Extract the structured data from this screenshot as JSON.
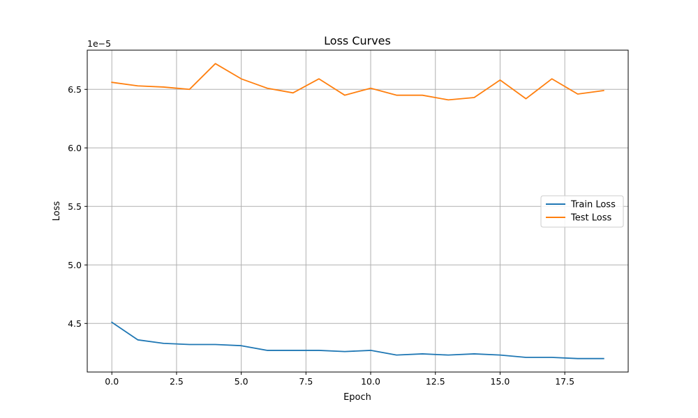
{
  "chart_data": {
    "type": "line",
    "title": "Loss Curves",
    "xlabel": "Epoch",
    "ylabel": "Loss",
    "offset_label": "1e−5",
    "x": [
      0,
      1,
      2,
      3,
      4,
      5,
      6,
      7,
      8,
      9,
      10,
      11,
      12,
      13,
      14,
      15,
      16,
      17,
      18,
      19
    ],
    "series": [
      {
        "name": "Train Loss",
        "color": "#1f77b4",
        "values": [
          4.51,
          4.36,
          4.33,
          4.32,
          4.32,
          4.31,
          4.27,
          4.27,
          4.27,
          4.26,
          4.27,
          4.23,
          4.24,
          4.23,
          4.24,
          4.23,
          4.21,
          4.21,
          4.2,
          4.2
        ]
      },
      {
        "name": "Test Loss",
        "color": "#ff7f0e",
        "values": [
          6.56,
          6.53,
          6.52,
          6.5,
          6.72,
          6.59,
          6.51,
          6.47,
          6.59,
          6.45,
          6.51,
          6.45,
          6.45,
          6.41,
          6.43,
          6.58,
          6.42,
          6.59,
          6.46,
          6.49
        ]
      }
    ],
    "xlim": [
      -0.95,
      19.95
    ],
    "ylim": [
      4.085,
      6.835
    ],
    "xticks": [
      0.0,
      2.5,
      5.0,
      7.5,
      10.0,
      12.5,
      15.0,
      17.5
    ],
    "xtick_labels": [
      "0.0",
      "2.5",
      "5.0",
      "7.5",
      "10.0",
      "12.5",
      "15.0",
      "17.5"
    ],
    "yticks": [
      4.5,
      5.0,
      5.5,
      6.0,
      6.5
    ],
    "ytick_labels": [
      "4.5",
      "5.0",
      "5.5",
      "6.0",
      "6.5"
    ],
    "grid": true,
    "legend_position": "center-right"
  }
}
